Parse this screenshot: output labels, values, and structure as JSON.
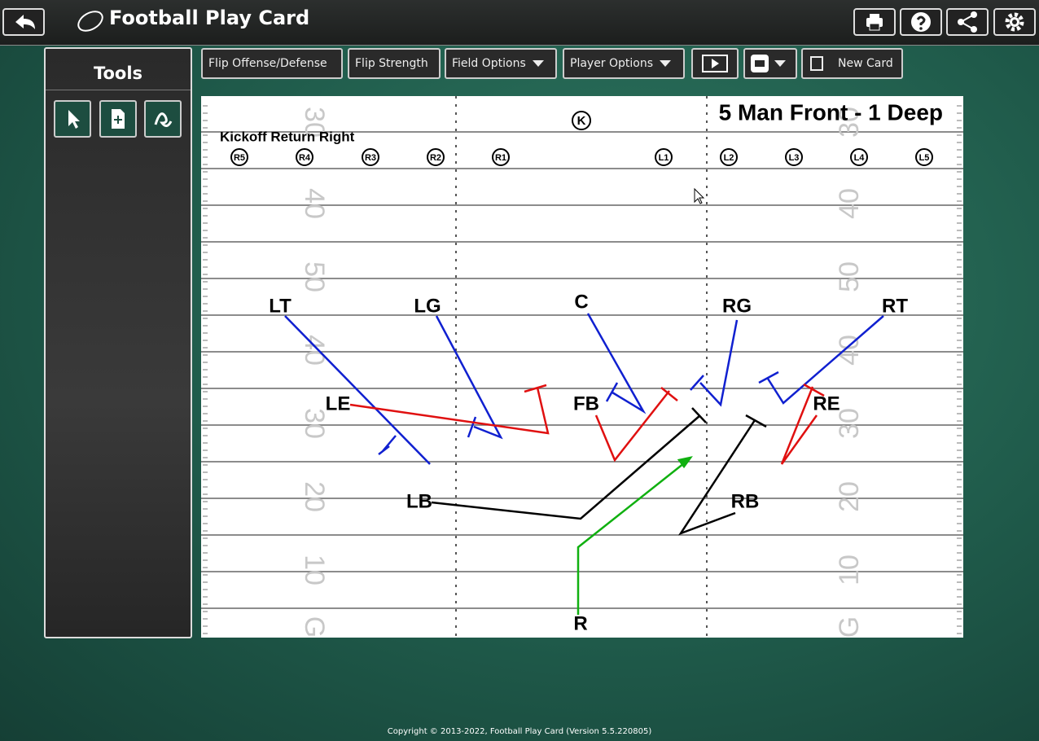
{
  "header": {
    "title": "Football Play Card"
  },
  "tools": {
    "title": "Tools"
  },
  "toolbar": {
    "buttons": [
      "Flip Offense/Defense",
      "Flip Strength",
      "Field Options",
      "Player Options",
      "New Card"
    ]
  },
  "field": {
    "title": "5 Man Front - 1 Deep",
    "play_name": "Kickoff Return Right",
    "kick_team": [
      "K",
      "R5",
      "R4",
      "R3",
      "R2",
      "R1",
      "L1",
      "L2",
      "L3",
      "L4",
      "L5"
    ],
    "players": [
      "LT",
      "LG",
      "C",
      "RG",
      "RT",
      "LE",
      "FB",
      "RE",
      "LB",
      "RB",
      "R"
    ],
    "yard_numbers": [
      "30",
      "40",
      "50",
      "40",
      "30",
      "20",
      "10",
      "G"
    ]
  },
  "footer": {
    "copyright": "Copyright © 2013-2022, Football Play Card (Version 5.5.220805)"
  }
}
